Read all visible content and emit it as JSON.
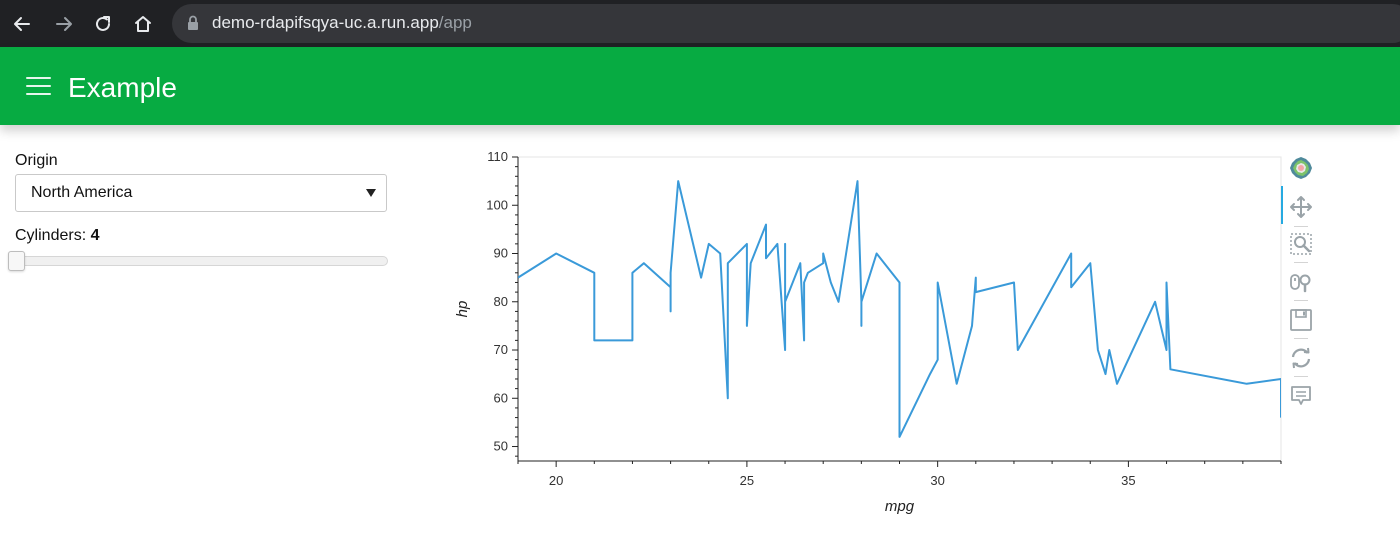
{
  "browser": {
    "url_host": "demo-rdapifsqya-uc.a.run.app",
    "url_path": "/app",
    "icons": [
      "back-icon",
      "forward-icon",
      "reload-icon",
      "home-icon",
      "lock-icon"
    ]
  },
  "header": {
    "title": "Example",
    "color": "#07ab42",
    "menu_icon": "hamburger-icon"
  },
  "sidebar": {
    "origin_label": "Origin",
    "origin_value": "North America",
    "cylinders_label": "Cylinders: ",
    "cylinders_value": "4",
    "slider_fraction": 0.0
  },
  "toolbar": {
    "tools": [
      "bokeh-logo-icon",
      "pan-icon",
      "box-zoom-icon",
      "wheel-zoom-icon",
      "save-icon",
      "reset-icon",
      "hover-icon"
    ],
    "active_color": "#26aae1"
  },
  "chart_data": {
    "type": "line",
    "xlabel": "mpg",
    "ylabel": "hp",
    "xlim": [
      19,
      39
    ],
    "ylim": [
      47,
      110
    ],
    "xticks": [
      20,
      25,
      30,
      35
    ],
    "yticks": [
      50,
      60,
      70,
      80,
      90,
      100,
      110
    ],
    "line_color": "#3a9ad9",
    "grid": false,
    "series": [
      {
        "x": [
          19.0,
          20.0,
          21.0,
          21.0,
          22.0,
          22.0,
          22.3,
          23.0,
          23.0,
          23.0,
          23.2,
          23.8,
          24.0,
          24.3,
          24.5,
          24.5,
          25.0,
          25.0,
          25.1,
          25.5,
          25.5,
          25.8,
          26.0,
          26.0,
          26.0,
          26.4,
          26.5,
          26.5,
          26.6,
          27.0,
          27.0,
          27.2,
          27.4,
          27.9,
          28.0,
          28.0,
          28.0,
          28.4,
          29.0,
          29.0,
          29.8,
          30.0,
          30.0,
          30.5,
          30.9,
          31.0,
          31.0,
          32.0,
          32.1,
          33.5,
          33.5,
          34.0,
          34.2,
          34.4,
          34.5,
          34.7,
          35.7,
          36.0,
          36.0,
          36.1,
          38.1,
          39.0,
          39.0
        ],
        "y": [
          85,
          90,
          86,
          72,
          72,
          86,
          88,
          83,
          78,
          86,
          105,
          85,
          92,
          90,
          60,
          88,
          92,
          75,
          88,
          96,
          89,
          92,
          70,
          92,
          80,
          88,
          72,
          84,
          86,
          88,
          90,
          84,
          80,
          105,
          80,
          75,
          80,
          90,
          84,
          52,
          65,
          68,
          84,
          63,
          75,
          85,
          82,
          84,
          70,
          90,
          83,
          88,
          70,
          65,
          70,
          63,
          80,
          70,
          84,
          66,
          63,
          64,
          56
        ]
      }
    ]
  }
}
